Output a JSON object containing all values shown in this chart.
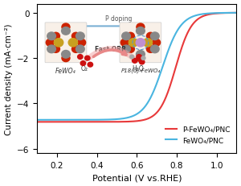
{
  "title": "",
  "xlabel": "Potential (V vs.RHE)",
  "ylabel": "Current density (mA·cm⁻²)",
  "xlim": [
    0.1,
    1.1
  ],
  "ylim": [
    -6.2,
    0.4
  ],
  "xticks": [
    0.2,
    0.4,
    0.6,
    0.8,
    1.0
  ],
  "yticks": [
    0,
    -2,
    -4,
    -6
  ],
  "color_red": "#e8393a",
  "color_blue": "#4ab5e0",
  "legend_red": "P-FeWO₄/PNC",
  "legend_blue": "FeWO₄/PNC",
  "background": "#ffffff"
}
